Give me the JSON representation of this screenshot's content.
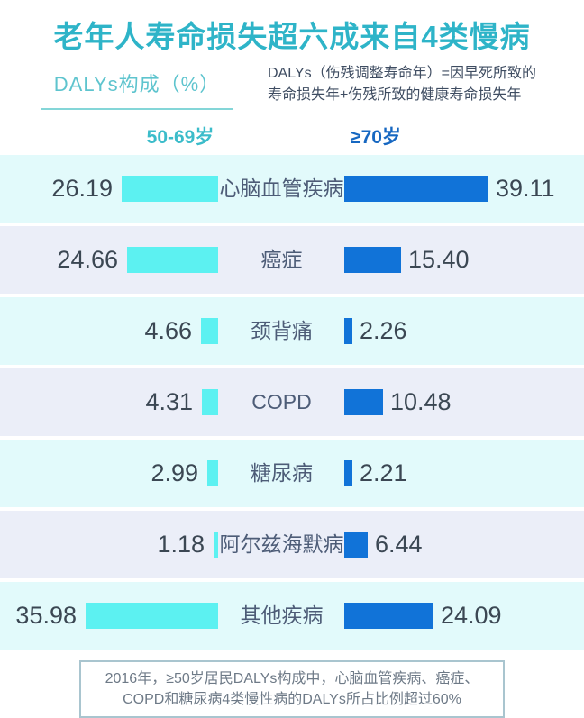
{
  "title": "老年人寿命损失超六成来自4类慢病",
  "subtitle": "DALYs构成（%）",
  "definition": {
    "line1": "DALYs（伤残调整寿命年）=因早死所致的",
    "line2": "寿命损失年+伤残所致的健康寿命损失年"
  },
  "columns": {
    "left": "50-69岁",
    "right": "≥70岁"
  },
  "chart_data": {
    "type": "bar",
    "orientation": "horizontal-diverging",
    "title": "老年人寿命损失超六成来自4类慢病",
    "unit": "DALYs构成（%）",
    "categories": [
      "心脑血管疾病",
      "癌症",
      "颈背痛",
      "COPD",
      "糖尿病",
      "阿尔兹海默病",
      "其他疾病"
    ],
    "series": [
      {
        "name": "50-69岁",
        "values": [
          26.19,
          24.66,
          4.66,
          4.31,
          2.99,
          1.18,
          35.98
        ],
        "color": "#5cf1f1",
        "side": "left"
      },
      {
        "name": "≥70岁",
        "values": [
          39.11,
          15.4,
          2.26,
          10.48,
          2.21,
          6.44,
          24.09
        ],
        "color": "#1173d8",
        "side": "right"
      }
    ],
    "value_labels": {
      "left": [
        "26.19",
        "24.66",
        "4.66",
        "4.31",
        "2.99",
        "1.18",
        "35.98"
      ],
      "right": [
        "39.11",
        "15.40",
        "2.26",
        "10.48",
        "2.21",
        "6.44",
        "24.09"
      ]
    },
    "xlim": [
      0,
      40
    ],
    "grid": false,
    "legend_position": "top"
  },
  "footnote": {
    "line1": "2016年，≥50岁居民DALYs构成中，心脑血管疾病、癌症、",
    "line2": "COPD和糖尿病4类慢性病的DALYs所占比例超过60%"
  },
  "colors": {
    "title_teal": "#2eb4c8",
    "subtitle_teal": "#5ec4ce",
    "underline_teal": "#84d6d8",
    "definition_text": "#3e4c61",
    "header_left_teal": "#3bbcca",
    "header_right_blue": "#1667c1",
    "bar_cyan": "#5cf1f1",
    "bar_blue": "#1173d8",
    "row_bg_cyan": "#e2fafb",
    "row_bg_lavender": "#ebeef8",
    "value_text": "#3b4753",
    "category_text": "#4d5c77",
    "footnote_text": "#6e7a87",
    "footnote_border": "#a9c5cf"
  }
}
